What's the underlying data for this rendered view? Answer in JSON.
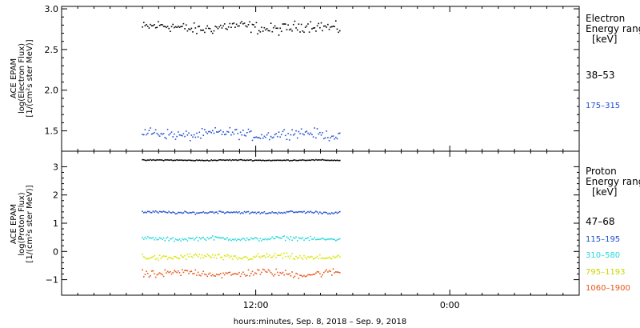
{
  "chart_data": [
    {
      "type": "scatter",
      "panel": "electron",
      "ylabel_lines": [
        "ACE EPAM",
        "log(Electron Flux)",
        "[1/(cm²s ster MeV)]"
      ],
      "ylim": [
        1.25,
        3.03
      ],
      "yticks": [
        1.5,
        2.0,
        2.5,
        3.0
      ],
      "ytick_labels": [
        "1.5",
        "2.0",
        "2.5",
        "3.0"
      ],
      "legend_title_lines": [
        "Electron",
        "Energy ranges",
        "[keV]"
      ],
      "series": [
        {
          "name": "38–53",
          "color": "#000000",
          "mean": 2.77,
          "spread": 0.08
        },
        {
          "name": "175–315",
          "color": "#1f4fd0",
          "mean": 1.46,
          "spread": 0.07
        }
      ]
    },
    {
      "type": "scatter",
      "panel": "proton",
      "ylabel_lines": [
        "ACE EPAM",
        "log(Proton Flux)",
        "[1/(cm²s ster MeV)]"
      ],
      "ylim": [
        -1.55,
        3.55
      ],
      "yticks": [
        -1,
        0,
        1,
        2,
        3
      ],
      "ytick_labels": [
        "−1",
        "0",
        "1",
        "2",
        "3"
      ],
      "legend_title_lines": [
        "Proton",
        "Energy ranges",
        "[keV]"
      ],
      "series": [
        {
          "name": "47–68",
          "color": "#000000",
          "mean": 3.23,
          "spread": 0.02
        },
        {
          "name": "115–195",
          "color": "#1f4fd0",
          "mean": 1.38,
          "spread": 0.05
        },
        {
          "name": "310–580",
          "color": "#22d8d8",
          "mean": 0.45,
          "spread": 0.08
        },
        {
          "name": "795–1193",
          "color": "#d6e600",
          "mean": -0.2,
          "spread": 0.12
        },
        {
          "name": "1060–1900",
          "color": "#e8561a",
          "mean": -0.78,
          "spread": 0.15
        }
      ]
    }
  ],
  "xaxis": {
    "label": "hours:minutes, Sep.  8, 2018 – Sep.  9, 2018",
    "range_hours": [
      0,
      32
    ],
    "data_range_hours": [
      5.0,
      17.2
    ],
    "ticks": [
      {
        "hours": 12,
        "label": "12:00"
      },
      {
        "hours": 24,
        "label": "0:00"
      }
    ]
  }
}
